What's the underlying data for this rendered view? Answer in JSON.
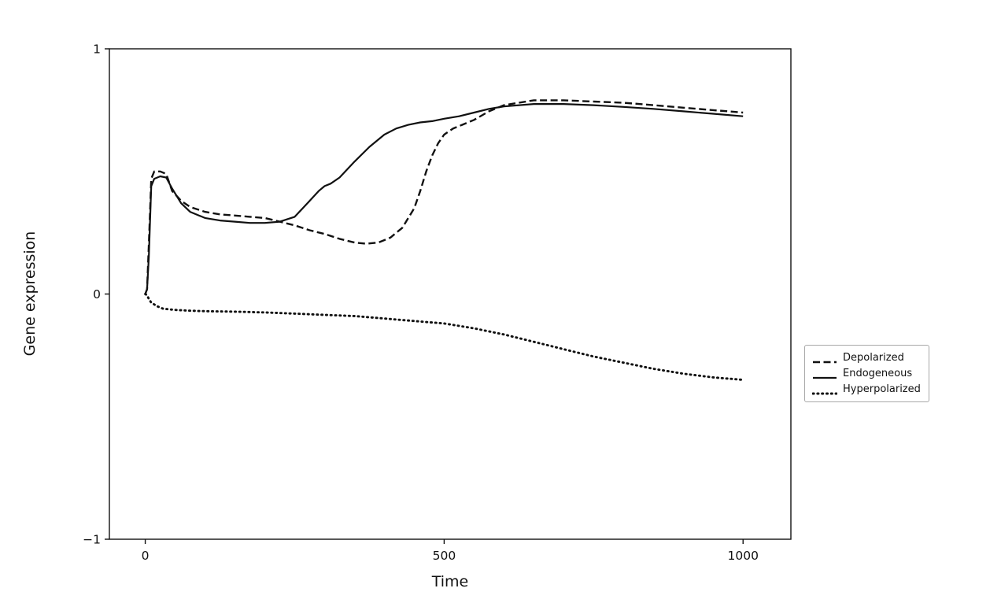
{
  "chart_data": {
    "type": "line",
    "title": "",
    "xlabel": "Time",
    "ylabel": "Gene expression",
    "xlim": [
      -60,
      1080
    ],
    "ylim": [
      -1,
      1
    ],
    "xticks": [
      0,
      500,
      1000
    ],
    "yticks": [
      -1,
      0,
      1
    ],
    "grid": false,
    "legend_position": "outside-right",
    "line_color": "#111111",
    "series": [
      {
        "name": "Depolarized",
        "style": "dashed",
        "x": [
          0,
          3,
          6,
          10,
          15,
          25,
          35,
          45,
          60,
          75,
          100,
          125,
          150,
          175,
          200,
          225,
          250,
          275,
          300,
          325,
          350,
          370,
          390,
          410,
          430,
          450,
          460,
          470,
          480,
          490,
          500,
          515,
          530,
          550,
          575,
          600,
          625,
          650,
          700,
          750,
          800,
          850,
          900,
          950,
          1000
        ],
        "y": [
          0,
          0.02,
          0.2,
          0.47,
          0.5,
          0.5,
          0.49,
          0.42,
          0.38,
          0.355,
          0.335,
          0.325,
          0.32,
          0.315,
          0.31,
          0.295,
          0.28,
          0.26,
          0.245,
          0.225,
          0.21,
          0.205,
          0.21,
          0.23,
          0.27,
          0.35,
          0.42,
          0.5,
          0.565,
          0.615,
          0.65,
          0.675,
          0.69,
          0.71,
          0.745,
          0.77,
          0.78,
          0.79,
          0.79,
          0.785,
          0.78,
          0.77,
          0.76,
          0.75,
          0.74
        ]
      },
      {
        "name": "Endogeneous",
        "style": "solid",
        "x": [
          0,
          3,
          6,
          10,
          15,
          25,
          35,
          45,
          60,
          75,
          100,
          125,
          150,
          175,
          200,
          225,
          250,
          275,
          290,
          300,
          310,
          325,
          350,
          375,
          400,
          420,
          440,
          460,
          480,
          500,
          525,
          550,
          575,
          600,
          650,
          700,
          750,
          800,
          850,
          900,
          950,
          1000
        ],
        "y": [
          0,
          0.02,
          0.15,
          0.44,
          0.47,
          0.48,
          0.475,
          0.43,
          0.37,
          0.335,
          0.31,
          0.3,
          0.295,
          0.29,
          0.29,
          0.295,
          0.315,
          0.38,
          0.42,
          0.44,
          0.45,
          0.475,
          0.54,
          0.6,
          0.65,
          0.675,
          0.69,
          0.7,
          0.705,
          0.715,
          0.725,
          0.74,
          0.755,
          0.765,
          0.775,
          0.775,
          0.77,
          0.763,
          0.755,
          0.745,
          0.735,
          0.725
        ]
      },
      {
        "name": "Hyperpolarized",
        "style": "dotted",
        "x": [
          0,
          3,
          6,
          10,
          20,
          30,
          50,
          75,
          100,
          150,
          200,
          250,
          300,
          350,
          400,
          450,
          500,
          550,
          600,
          650,
          700,
          750,
          800,
          850,
          900,
          950,
          1000
        ],
        "y": [
          0,
          -0.005,
          -0.02,
          -0.035,
          -0.05,
          -0.06,
          -0.065,
          -0.068,
          -0.07,
          -0.072,
          -0.075,
          -0.08,
          -0.085,
          -0.09,
          -0.1,
          -0.11,
          -0.12,
          -0.14,
          -0.165,
          -0.195,
          -0.225,
          -0.255,
          -0.28,
          -0.305,
          -0.325,
          -0.34,
          -0.35
        ]
      }
    ]
  }
}
